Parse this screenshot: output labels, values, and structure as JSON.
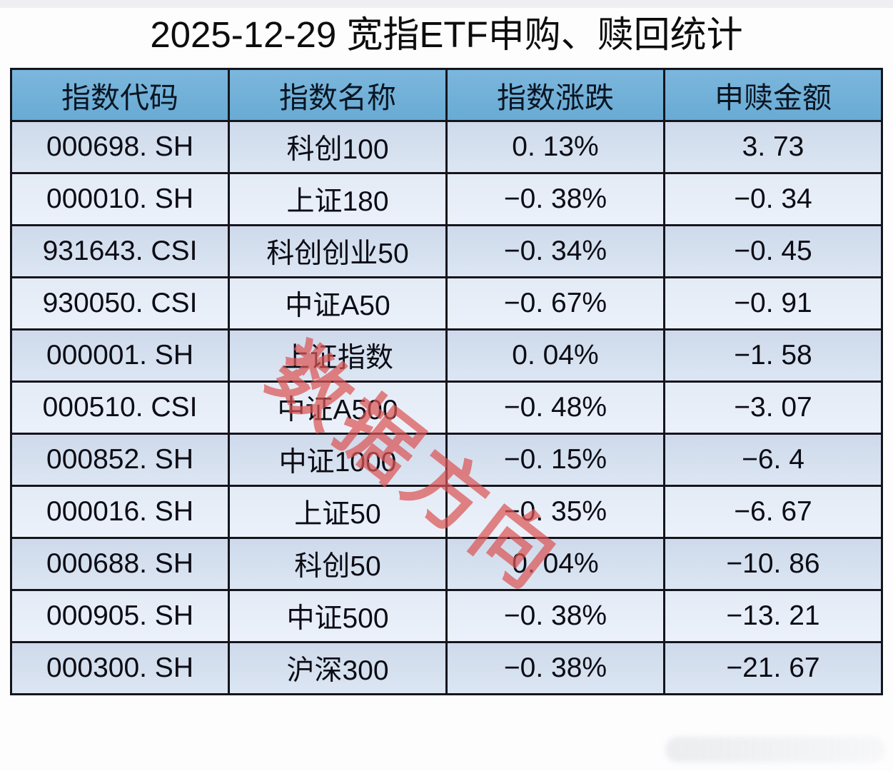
{
  "page": {
    "title": "2025-12-29 宽指ETF申购、赎回统计",
    "diagonal_watermark": "数据方向",
    "colors": {
      "header_bg": "#6fb0d8",
      "row_odd_bg": "#d3dfee",
      "row_even_bg": "#e8eef7",
      "table_border": "#15151d",
      "watermark_red": "#db5454",
      "title_text": "#0d0d0d"
    }
  },
  "chart_data": {
    "type": "table",
    "title": "2025-12-29 宽指ETF申购、赎回统计",
    "columns": [
      "指数代码",
      "指数名称",
      "指数涨跌",
      "申赎金额"
    ],
    "rows": [
      [
        "000698. SH",
        "科创100",
        "0. 13%",
        "3. 73"
      ],
      [
        "000010. SH",
        "上证180",
        "−0. 38%",
        "−0. 34"
      ],
      [
        "931643. CSI",
        "科创创业50",
        "−0. 34%",
        "−0. 45"
      ],
      [
        "930050. CSI",
        "中证A50",
        "−0. 67%",
        "−0. 91"
      ],
      [
        "000001. SH",
        "上证指数",
        "0. 04%",
        "−1. 58"
      ],
      [
        "000510. CSI",
        "中证A500",
        "−0. 48%",
        "−3. 07"
      ],
      [
        "000852. SH",
        "中证1000",
        "−0. 15%",
        "−6. 4"
      ],
      [
        "000016. SH",
        "上证50",
        "−0. 35%",
        "−6. 67"
      ],
      [
        "000688. SH",
        "科创50",
        "0. 04%",
        "−10. 86"
      ],
      [
        "000905. SH",
        "中证500",
        "−0. 38%",
        "−13. 21"
      ],
      [
        "000300. SH",
        "沪深300",
        "−0. 38%",
        "−21. 67"
      ]
    ]
  }
}
